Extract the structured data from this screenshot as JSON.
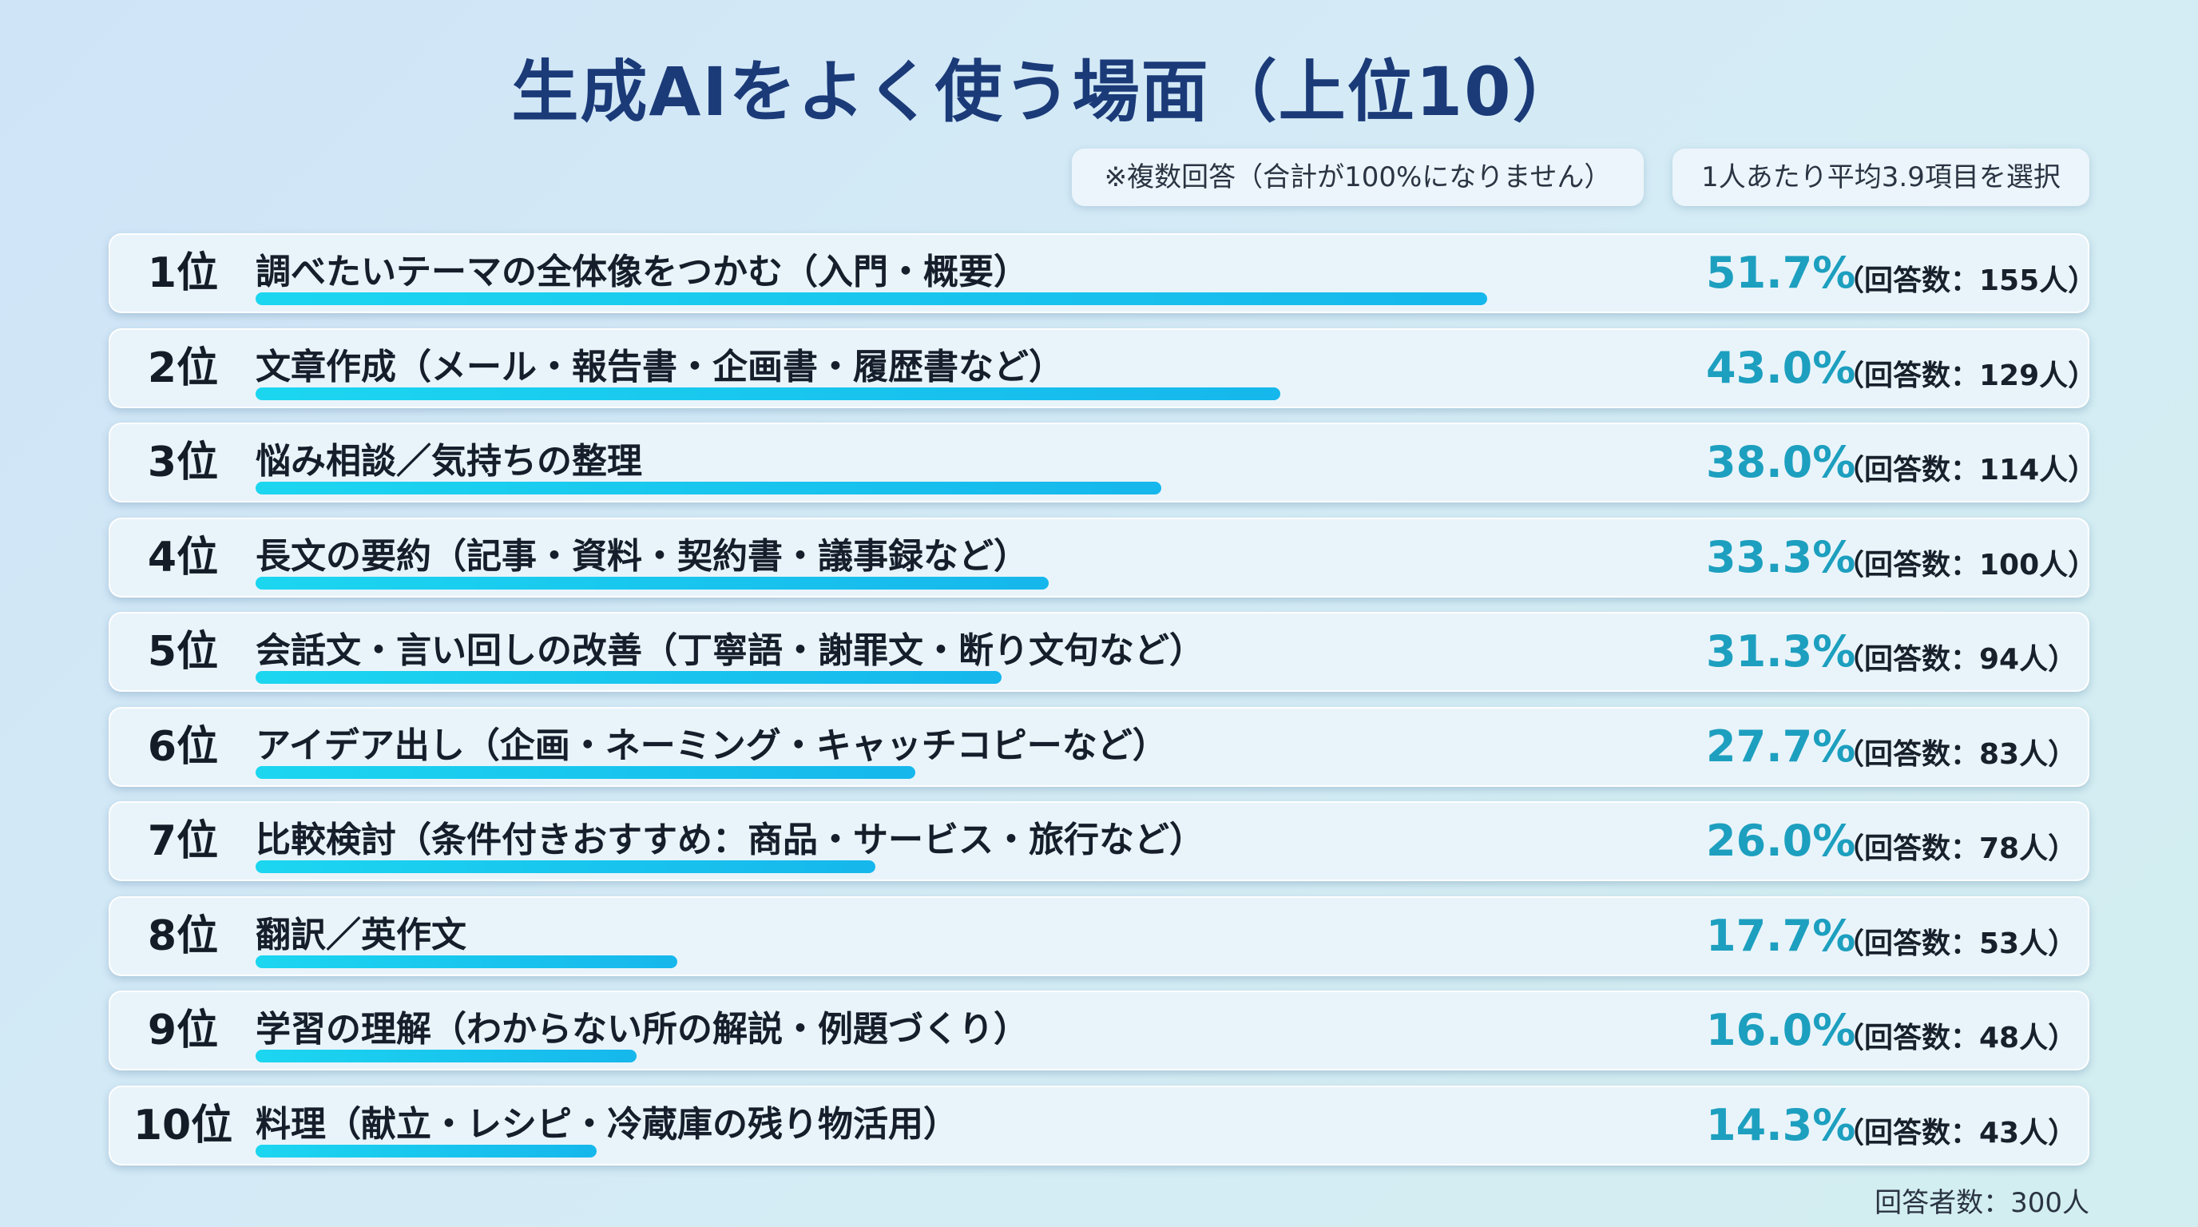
{
  "title": "生成AIをよく使う場面（上位10）",
  "notes": {
    "multiple_answer": "※複数回答（合計が100%になりません）",
    "average": "1人あたり平均3.9項目を選択"
  },
  "total_respondents": "回答者数：300人",
  "colors": {
    "title": "#1b3a78",
    "bar": "#18c4ee",
    "percent": "#1d9fbf"
  },
  "chart_data": {
    "type": "bar",
    "orientation": "horizontal",
    "title": "生成AIをよく使う場面（上位10）",
    "xlim": [
      0,
      60
    ],
    "grid": false,
    "items": [
      {
        "rank": "1位",
        "category": "調べたいテーマの全体像をつかむ（入門・概要）",
        "value": 51.7,
        "percent_text": "51.7%",
        "count_text": "（回答数：155人）"
      },
      {
        "rank": "2位",
        "category": "文章作成（メール・報告書・企画書・履歴書など）",
        "value": 43.0,
        "percent_text": "43.0%",
        "count_text": "（回答数：129人）"
      },
      {
        "rank": "3位",
        "category": "悩み相談／気持ちの整理",
        "value": 38.0,
        "percent_text": "38.0%",
        "count_text": "（回答数：114人）"
      },
      {
        "rank": "4位",
        "category": "長文の要約（記事・資料・契約書・議事録など）",
        "value": 33.3,
        "percent_text": "33.3%",
        "count_text": "（回答数：100人）"
      },
      {
        "rank": "5位",
        "category": "会話文・言い回しの改善（丁寧語・謝罪文・断り文句など）",
        "value": 31.3,
        "percent_text": "31.3%",
        "count_text": "（回答数：94人）"
      },
      {
        "rank": "6位",
        "category": "アイデア出し（企画・ネーミング・キャッチコピーなど）",
        "value": 27.7,
        "percent_text": "27.7%",
        "count_text": "（回答数：83人）"
      },
      {
        "rank": "7位",
        "category": "比較検討（条件付きおすすめ：商品・サービス・旅行など）",
        "value": 26.0,
        "percent_text": "26.0%",
        "count_text": "（回答数：78人）"
      },
      {
        "rank": "8位",
        "category": "翻訳／英作文",
        "value": 17.7,
        "percent_text": "17.7%",
        "count_text": "（回答数：53人）"
      },
      {
        "rank": "9位",
        "category": "学習の理解（わからない所の解説・例題づくり）",
        "value": 16.0,
        "percent_text": "16.0%",
        "count_text": "（回答数：48人）"
      },
      {
        "rank": "10位",
        "category": "料理（献立・レシピ・冷蔵庫の残り物活用）",
        "value": 14.3,
        "percent_text": "14.3%",
        "count_text": "（回答数：43人）"
      }
    ]
  }
}
